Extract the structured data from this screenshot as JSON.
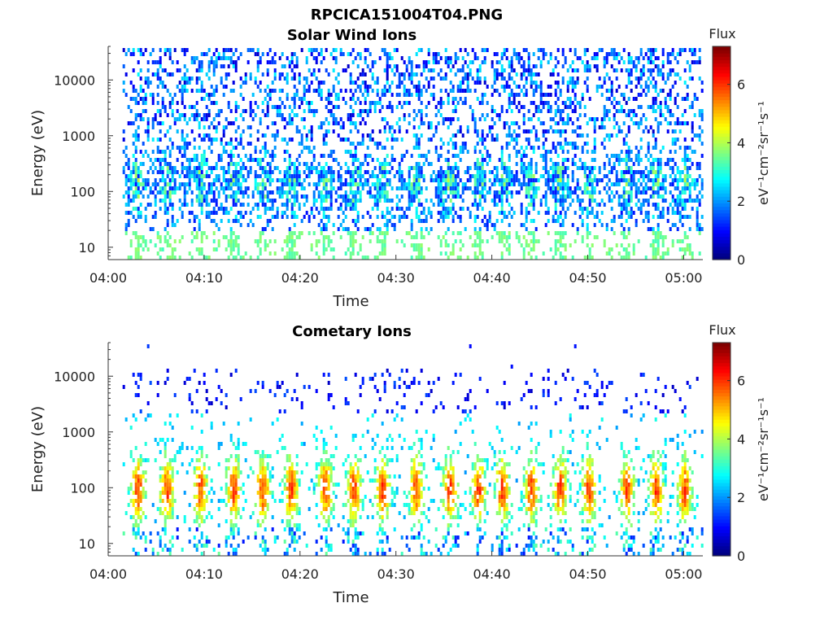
{
  "figure_title": "RPCICA151004T04.PNG",
  "chart_data": [
    {
      "type": "heatmap",
      "title": "Solar Wind Ions",
      "xlabel": "Time",
      "ylabel": "Energy (eV)",
      "x_ticks": [
        "04:00",
        "04:10",
        "04:20",
        "04:30",
        "04:40",
        "04:50",
        "05:00"
      ],
      "xlim": [
        "04:00",
        "05:02"
      ],
      "y_scale": "log",
      "y_ticks": [
        10,
        100,
        1000,
        10000
      ],
      "ylim": [
        6,
        40000
      ],
      "colorbar": {
        "title": "Flux",
        "label": "eV⁻¹cm⁻²sr⁻¹s⁻¹",
        "ticks": [
          0,
          2,
          4,
          6
        ],
        "range": [
          0,
          7.3
        ],
        "colormap": "jet"
      },
      "bursts_minutes": [
        3,
        6,
        9.5,
        13,
        16,
        19,
        22.5,
        25.5,
        28.5,
        32,
        35.5,
        38.5,
        41,
        44,
        47,
        50,
        54,
        57,
        60
      ],
      "core_energy_eV": 150,
      "typical_level": 3,
      "high_energy_background": {
        "energy_range_eV": [
          1000,
          40000
        ],
        "level_range": [
          0.5,
          2.5
        ]
      }
    },
    {
      "type": "heatmap",
      "title": "Cometary Ions",
      "xlabel": "Time",
      "ylabel": "Energy (eV)",
      "x_ticks": [
        "04:00",
        "04:10",
        "04:20",
        "04:30",
        "04:40",
        "04:50",
        "05:00"
      ],
      "xlim": [
        "04:00",
        "05:02"
      ],
      "y_scale": "log",
      "y_ticks": [
        10,
        100,
        1000,
        10000
      ],
      "ylim": [
        6,
        40000
      ],
      "colorbar": {
        "title": "Flux",
        "label": "eV⁻¹cm⁻²sr⁻¹s⁻¹",
        "ticks": [
          0,
          2,
          4,
          6
        ],
        "range": [
          0,
          7.3
        ],
        "colormap": "jet"
      },
      "bursts_minutes": [
        3,
        6,
        9.5,
        13,
        16,
        19,
        22.5,
        25.5,
        28.5,
        32,
        35.5,
        38.5,
        41,
        44,
        47,
        50,
        54,
        57,
        60
      ],
      "core_energy_eV": 100,
      "peak_level": 6.2,
      "high_energy_background": {
        "energy_range_eV": [
          3000,
          11000
        ],
        "level_range": [
          0.5,
          1.5
        ]
      }
    }
  ],
  "colors": {
    "axis": "#333333",
    "background": "#ffffff"
  }
}
